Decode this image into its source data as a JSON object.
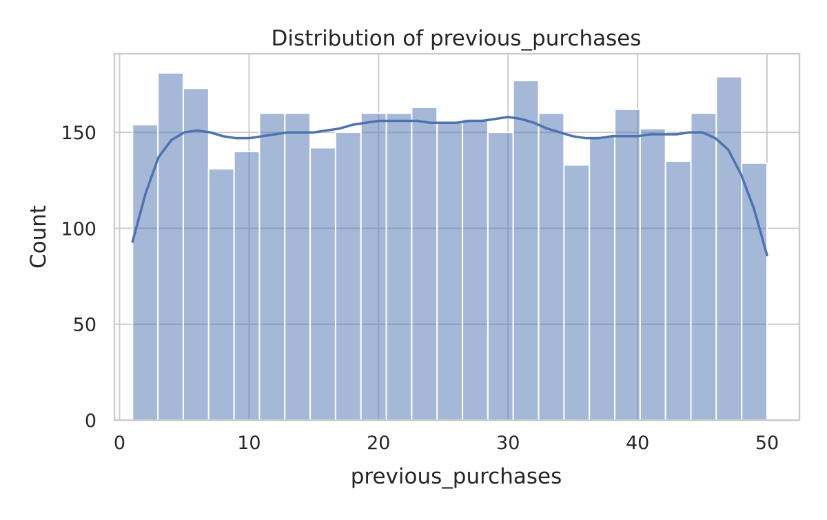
{
  "chart_data": {
    "type": "bar",
    "title": "Distribution of previous_purchases",
    "xlabel": "previous_purchases",
    "ylabel": "Count",
    "xlim": [
      -0.4,
      52.5
    ],
    "ylim": [
      0,
      191
    ],
    "xticks": [
      0,
      10,
      20,
      30,
      40,
      50
    ],
    "yticks": [
      0,
      50,
      100,
      150
    ],
    "grid": true,
    "bar_color": "#4c72b0",
    "bar_opacity": 0.5,
    "kde_color": "#4c72b0",
    "bins": [
      {
        "x0": 1.0,
        "x1": 2.96,
        "count": 154
      },
      {
        "x0": 2.96,
        "x1": 4.92,
        "count": 181
      },
      {
        "x0": 4.92,
        "x1": 6.88,
        "count": 173
      },
      {
        "x0": 6.88,
        "x1": 8.84,
        "count": 131
      },
      {
        "x0": 8.84,
        "x1": 10.8,
        "count": 140
      },
      {
        "x0": 10.8,
        "x1": 12.76,
        "count": 160
      },
      {
        "x0": 12.76,
        "x1": 14.72,
        "count": 160
      },
      {
        "x0": 14.72,
        "x1": 16.68,
        "count": 142
      },
      {
        "x0": 16.68,
        "x1": 18.64,
        "count": 150
      },
      {
        "x0": 18.64,
        "x1": 20.6,
        "count": 160
      },
      {
        "x0": 20.6,
        "x1": 22.56,
        "count": 160
      },
      {
        "x0": 22.56,
        "x1": 24.52,
        "count": 163
      },
      {
        "x0": 24.52,
        "x1": 26.48,
        "count": 155
      },
      {
        "x0": 26.48,
        "x1": 28.44,
        "count": 157
      },
      {
        "x0": 28.44,
        "x1": 30.4,
        "count": 150
      },
      {
        "x0": 30.4,
        "x1": 32.36,
        "count": 177
      },
      {
        "x0": 32.36,
        "x1": 34.32,
        "count": 160
      },
      {
        "x0": 34.32,
        "x1": 36.28,
        "count": 133
      },
      {
        "x0": 36.28,
        "x1": 38.24,
        "count": 148
      },
      {
        "x0": 38.24,
        "x1": 40.2,
        "count": 162
      },
      {
        "x0": 40.2,
        "x1": 42.16,
        "count": 152
      },
      {
        "x0": 42.16,
        "x1": 44.12,
        "count": 135
      },
      {
        "x0": 44.12,
        "x1": 46.08,
        "count": 160
      },
      {
        "x0": 46.08,
        "x1": 48.04,
        "count": 179
      },
      {
        "x0": 48.04,
        "x1": 50.0,
        "count": 134
      }
    ],
    "kde": {
      "x": [
        1,
        2,
        3,
        4,
        5,
        6,
        7,
        8,
        9,
        10,
        11,
        12,
        13,
        14,
        15,
        16,
        17,
        18,
        19,
        20,
        21,
        22,
        23,
        24,
        25,
        26,
        27,
        28,
        29,
        30,
        31,
        32,
        33,
        34,
        35,
        36,
        37,
        38,
        39,
        40,
        41,
        42,
        43,
        44,
        45,
        46,
        47,
        48,
        49,
        50
      ],
      "y": [
        93,
        118,
        137,
        146,
        150,
        151,
        150,
        148,
        147,
        147,
        148,
        149,
        150,
        150,
        150,
        151,
        152,
        154,
        155,
        156,
        156,
        156,
        156,
        155,
        155,
        155,
        156,
        156,
        157,
        158,
        157,
        155,
        152,
        150,
        148,
        147,
        147,
        148,
        148,
        148,
        149,
        149,
        149,
        150,
        150,
        147,
        141,
        128,
        110,
        86
      ]
    }
  }
}
